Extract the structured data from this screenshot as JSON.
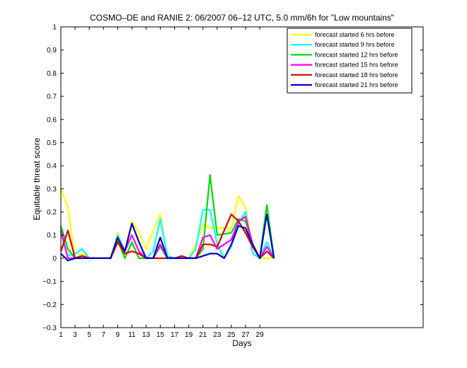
{
  "chart_data": {
    "type": "line",
    "title": "COSMO–DE and RANIE 2: 06/2007 06–12 UTC, 5.0 mm/6h for \"Low mountains\"",
    "xlabel": "Days",
    "ylabel": "Equitable threat score",
    "xlim": [
      1,
      52
    ],
    "ylim": [
      -0.3,
      1
    ],
    "xticks": [
      1,
      3,
      5,
      7,
      9,
      11,
      13,
      15,
      17,
      19,
      21,
      23,
      25,
      27,
      29
    ],
    "xtick_labels": [
      "1",
      "3",
      "5",
      "7",
      "9",
      "11",
      "13",
      "15",
      "17",
      "19",
      "21",
      "23",
      "25",
      "27",
      "29"
    ],
    "yticks": [
      -0.3,
      -0.2,
      -0.1,
      0,
      0.1,
      0.2,
      0.3,
      0.4,
      0.5,
      0.6,
      0.7,
      0.8,
      0.9,
      1
    ],
    "ytick_labels": [
      "−0.3",
      "−0.2",
      "−0.1",
      "0",
      "0.1",
      "0.2",
      "0.3",
      "0.4",
      "0.5",
      "0.6",
      "0.7",
      "0.8",
      "0.9",
      "1"
    ],
    "grid": false,
    "legend_position": "top-right",
    "series": [
      {
        "name": "forecast started 6 hrs before",
        "color": "#ffff00",
        "x": [
          1,
          2,
          3,
          4,
          5,
          6,
          7,
          8,
          9,
          10,
          11,
          12,
          13,
          14,
          15,
          16,
          17,
          18,
          19,
          20,
          21,
          22,
          23,
          25,
          26,
          27,
          28,
          29,
          30,
          31
        ],
        "y": [
          0.3,
          0.22,
          0.0,
          0.02,
          0.0,
          0.0,
          0.0,
          0.0,
          0.11,
          0.02,
          0.16,
          0.11,
          0.04,
          0.12,
          0.19,
          0.0,
          0.0,
          0.0,
          0.0,
          0.06,
          0.15,
          0.13,
          0.13,
          0.13,
          0.27,
          0.22,
          0.05,
          0.0,
          0.0,
          0.0
        ]
      },
      {
        "name": "forecast started 9 hrs before",
        "color": "#00ffff",
        "x": [
          1,
          2,
          3,
          4,
          5,
          6,
          7,
          8,
          9,
          10,
          11,
          12,
          13,
          14,
          15,
          16,
          17,
          18,
          19,
          20,
          21,
          22,
          23,
          24,
          25,
          26,
          27,
          28,
          29,
          30,
          31
        ],
        "y": [
          0.11,
          0.01,
          0.02,
          0.04,
          0.0,
          0.0,
          0.0,
          0.0,
          0.1,
          0.03,
          0.15,
          0.07,
          0.0,
          0.03,
          0.17,
          0.01,
          0.0,
          0.0,
          0.0,
          0.04,
          0.21,
          0.21,
          0.06,
          0.0,
          0.05,
          0.15,
          0.2,
          0.02,
          0.0,
          0.07,
          0.0
        ]
      },
      {
        "name": "forecast started 12 hrs before",
        "color": "#00dd00",
        "x": [
          1,
          2,
          3,
          4,
          5,
          6,
          7,
          8,
          9,
          10,
          11,
          12,
          13,
          14,
          15,
          16,
          17,
          18,
          19,
          20,
          21,
          22,
          23,
          25,
          26,
          27,
          28,
          29,
          30,
          31
        ],
        "y": [
          0.14,
          0.04,
          0.0,
          0.0,
          0.0,
          0.0,
          0.0,
          0.0,
          0.08,
          0.0,
          0.07,
          0.0,
          0.0,
          0.0,
          0.05,
          0.0,
          0.0,
          0.0,
          0.0,
          0.0,
          0.04,
          0.36,
          0.1,
          0.11,
          0.17,
          0.16,
          0.06,
          0.0,
          0.23,
          0.0
        ]
      },
      {
        "name": "forecast started 15 hrs before",
        "color": "#ff00ff",
        "x": [
          1,
          2,
          3,
          4,
          5,
          6,
          7,
          8,
          9,
          10,
          11,
          12,
          13,
          14,
          15,
          16,
          17,
          18,
          19,
          20,
          21,
          22,
          23,
          25,
          26,
          27,
          28,
          29,
          30,
          31
        ],
        "y": [
          0.12,
          0.0,
          0.0,
          0.01,
          0.0,
          0.0,
          0.0,
          0.0,
          0.07,
          0.03,
          0.1,
          0.03,
          0.0,
          0.0,
          0.06,
          0.0,
          0.0,
          0.0,
          0.0,
          0.0,
          0.09,
          0.1,
          0.04,
          0.08,
          0.16,
          0.18,
          0.06,
          0.0,
          0.05,
          0.0
        ]
      },
      {
        "name": "forecast started 18 hrs before",
        "color": "#dd0000",
        "x": [
          1,
          2,
          3,
          4,
          5,
          6,
          7,
          8,
          9,
          10,
          11,
          12,
          13,
          14,
          15,
          16,
          17,
          18,
          19,
          20,
          21,
          22,
          23,
          25,
          26,
          27,
          28,
          29,
          30,
          31
        ],
        "y": [
          0.03,
          0.12,
          0.0,
          0.01,
          0.0,
          0.0,
          0.0,
          0.0,
          0.07,
          0.02,
          0.03,
          0.02,
          0.0,
          0.0,
          0.0,
          0.0,
          0.0,
          0.01,
          0.0,
          0.0,
          0.06,
          0.06,
          0.05,
          0.19,
          0.16,
          0.11,
          0.05,
          0.0,
          0.03,
          0.0
        ]
      },
      {
        "name": "forecast started 21 hrs before",
        "color": "#0000cc",
        "x": [
          1,
          2,
          3,
          4,
          5,
          6,
          7,
          8,
          9,
          10,
          11,
          12,
          13,
          14,
          15,
          16,
          17,
          18,
          19,
          20,
          21,
          22,
          23,
          24,
          25,
          26,
          27,
          28,
          29,
          30,
          31
        ],
        "y": [
          0.02,
          -0.01,
          0.0,
          0.0,
          0.0,
          0.0,
          0.0,
          0.0,
          0.09,
          0.03,
          0.15,
          0.07,
          0.0,
          0.0,
          0.09,
          0.0,
          0.0,
          0.0,
          0.0,
          0.0,
          0.01,
          0.02,
          0.02,
          0.0,
          0.06,
          0.14,
          0.13,
          0.06,
          0.0,
          0.19,
          0.0
        ]
      }
    ]
  }
}
